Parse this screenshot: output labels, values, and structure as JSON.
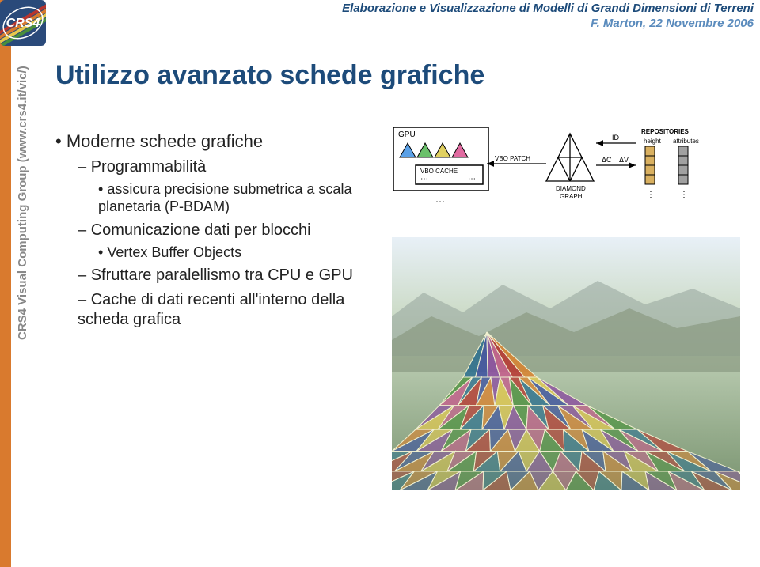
{
  "header": {
    "title_line1": "Elaborazione e Visualizzazione di Modelli di Grandi Dimensioni di Terreni",
    "title_line2": "F. Marton, 22 Novembre 2006"
  },
  "side_label": "CRS4 Visual Computing Group (www.crs4.it/vic/)",
  "slide_title": "Utilizzo avanzato schede grafiche",
  "bullets": {
    "root": "Moderne schede grafiche",
    "l2_1": "Programmabilità",
    "l3_1": "assicura precisione submetrica a scala planetaria (P-BDAM)",
    "l2_2": "Comunicazione dati per blocchi",
    "l3_2": "Vertex Buffer Objects",
    "l2_3": "Sfruttare paralellismo tra CPU e GPU",
    "l2_4": "Cache di dati recenti all'interno della scheda grafica"
  },
  "diagram": {
    "stroke": "#000000",
    "font_family": "Arial, sans-serif",
    "labels": {
      "gpu": "GPU",
      "vbo_cache": "VBO CACHE",
      "vbo_patch": "VBO PATCH",
      "diamond_graph": "DIAMOND\nGRAPH",
      "id": "ID",
      "dc": "ΔC",
      "dv": "ΔV",
      "repos": "REPOSITORIES",
      "height": "height",
      "attrs": "attributes"
    },
    "vbo_colors": [
      "#5aa0e6",
      "#6ac06a",
      "#e0d060",
      "#e06aa0"
    ],
    "repo_colors": [
      "#d9b060",
      "#a0a0a0"
    ]
  },
  "terrain": {
    "bg_gradient_top": "#e8f0f7",
    "bg_gradient_bottom": "#7a9470",
    "mesh_colors": [
      "#b8352e",
      "#d9812e",
      "#e2c84c",
      "#4a8f3c",
      "#2a6f8f",
      "#3a4fa0",
      "#8a4aa0",
      "#c45a8a"
    ],
    "wire_color": "#f0f0d0"
  },
  "logo": {
    "bg": "#2a4a7a",
    "bands": [
      "#b8352e",
      "#d97a2e",
      "#e6c84c",
      "#4a8f3c"
    ],
    "text": "CRS4",
    "text_color": "#ffffff"
  }
}
